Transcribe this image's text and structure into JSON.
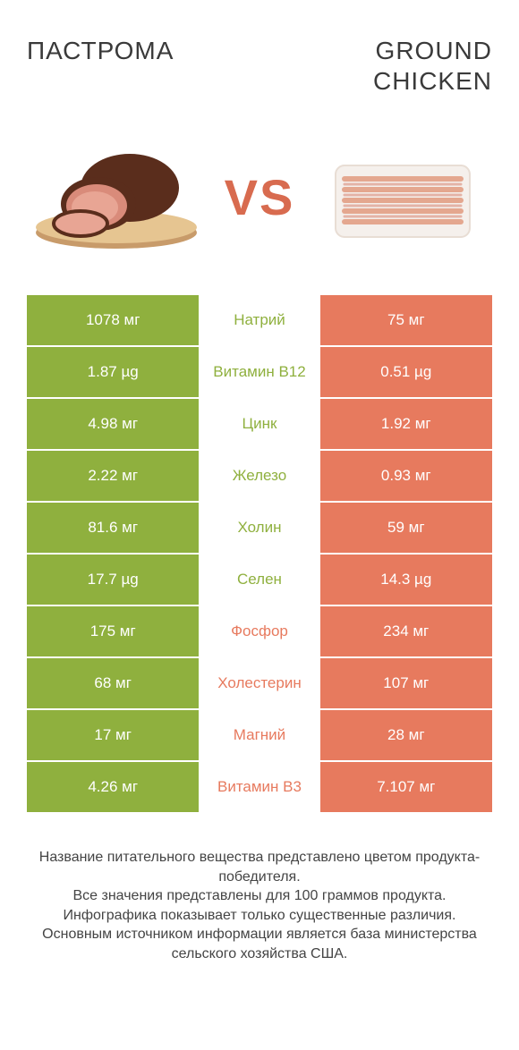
{
  "colors": {
    "left": "#8fb03e",
    "right": "#e77a5e",
    "vs": "#d86b4f",
    "title": "#3a3a3a",
    "footer": "#444444"
  },
  "titles": {
    "left": "ПАСТРОМА",
    "right": "GROUND CHICKEN"
  },
  "vs_label": "VS",
  "rows": [
    {
      "left_val": "1078 мг",
      "label": "Натрий",
      "right_val": "75 мг",
      "winner": "left"
    },
    {
      "left_val": "1.87 µg",
      "label": "Витамин B12",
      "right_val": "0.51 µg",
      "winner": "left"
    },
    {
      "left_val": "4.98 мг",
      "label": "Цинк",
      "right_val": "1.92 мг",
      "winner": "left"
    },
    {
      "left_val": "2.22 мг",
      "label": "Железо",
      "right_val": "0.93 мг",
      "winner": "left"
    },
    {
      "left_val": "81.6 мг",
      "label": "Холин",
      "right_val": "59 мг",
      "winner": "left"
    },
    {
      "left_val": "17.7 µg",
      "label": "Селен",
      "right_val": "14.3 µg",
      "winner": "left"
    },
    {
      "left_val": "175 мг",
      "label": "Фосфор",
      "right_val": "234 мг",
      "winner": "right"
    },
    {
      "left_val": "68 мг",
      "label": "Холестерин",
      "right_val": "107 мг",
      "winner": "right"
    },
    {
      "left_val": "17 мг",
      "label": "Магний",
      "right_val": "28 мг",
      "winner": "right"
    },
    {
      "left_val": "4.26 мг",
      "label": "Витамин B3",
      "right_val": "7.107 мг",
      "winner": "right"
    }
  ],
  "footer_lines": [
    "Название питательного вещества представлено цветом продукта-победителя.",
    "Все значения представлены для 100 граммов продукта.",
    "Инфографика показывает только существенные различия.",
    "Основным источником информации является база министерства сельского хозяйства США."
  ]
}
